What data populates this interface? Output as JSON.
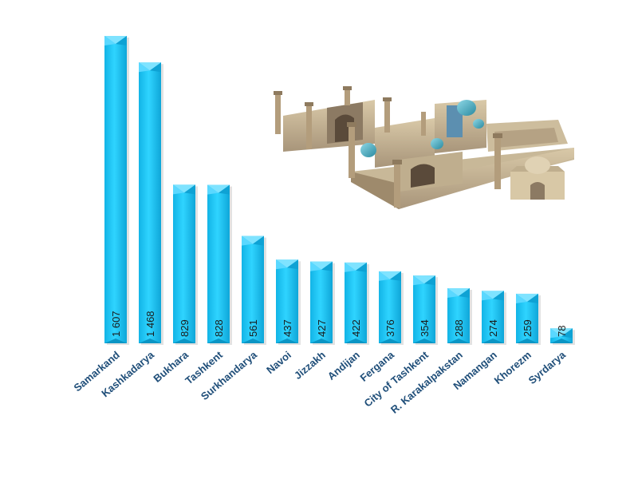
{
  "chart_data": {
    "type": "bar",
    "title": "",
    "xlabel": "",
    "ylabel": "",
    "categories": [
      "Samarkand",
      "Kashkadarya",
      "Bukhara",
      "Tashkent",
      "Surkhandarya",
      "Navoi",
      "Jizzakh",
      "Andijan",
      "Fergana",
      "City of Tashkent",
      "R. Karakalpakstan",
      "Namangan",
      "Khorezm",
      "Syrdarya"
    ],
    "values": [
      1607,
      1468,
      829,
      828,
      561,
      437,
      427,
      422,
      376,
      354,
      288,
      274,
      259,
      78
    ],
    "value_labels": [
      "1 607",
      "1 468",
      "829",
      "828",
      "561",
      "437",
      "427",
      "422",
      "376",
      "354",
      "288",
      "274",
      "259",
      "78"
    ],
    "ylim": [
      0,
      1607
    ],
    "grid": false,
    "legend": "none",
    "bar_color": "#1ec8f5",
    "bar_top_color": "#7fe3ff",
    "label_color": "#1f4e79",
    "illustration": "madrasa-complex-illustration"
  }
}
